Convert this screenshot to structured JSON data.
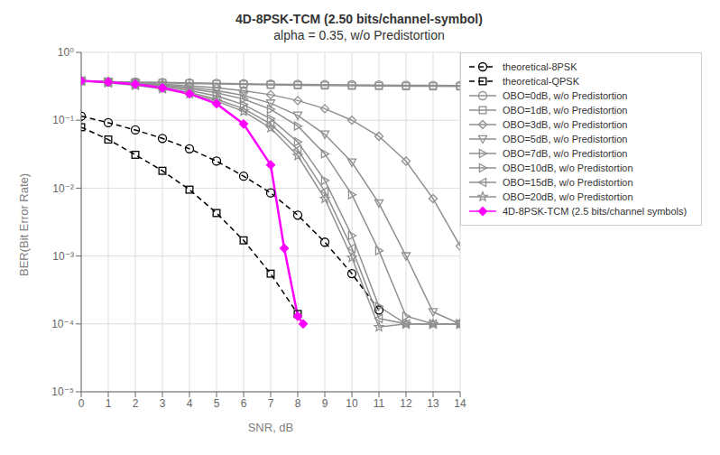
{
  "chart_data": {
    "type": "line",
    "title": "4D-8PSK-TCM (2.50 bits/channel-symbol)",
    "subtitle": "alpha = 0.35, w/o Predistortion",
    "x_label": "SNR, dB",
    "y_label": "BER(Bit Error Rate)",
    "log": "y",
    "grid": true,
    "legend": "upper right",
    "xlim": [
      0,
      14
    ],
    "xticks": [
      0,
      1,
      2,
      3,
      4,
      5,
      6,
      7,
      8,
      9,
      10,
      11,
      12,
      13,
      14
    ],
    "ylim": [
      1e-05,
      1
    ],
    "yticks": [
      {
        "value": 1e-05,
        "label": "10⁻⁵"
      },
      {
        "value": 0.0001,
        "label": "10⁻⁴"
      },
      {
        "value": 0.001,
        "label": "10⁻³"
      },
      {
        "value": 0.01,
        "label": "10⁻²"
      },
      {
        "value": 0.1,
        "label": "10⁻¹"
      },
      {
        "value": 1,
        "label": "10⁰"
      }
    ],
    "series": [
      {
        "name": "theoretical-8PSK",
        "color": "#000000",
        "line_style": "dashed",
        "marker": "circle",
        "x": [
          0,
          1,
          2,
          3,
          4,
          5,
          6,
          7,
          8,
          9,
          10,
          11
        ],
        "values": [
          0.115,
          0.092,
          0.072,
          0.054,
          0.038,
          0.025,
          0.015,
          0.0085,
          0.004,
          0.0016,
          0.00055,
          0.00016
        ]
      },
      {
        "name": "theoretical-QPSK",
        "color": "#000000",
        "line_style": "dashed",
        "marker": "square",
        "x": [
          0,
          1,
          2,
          3,
          4,
          5,
          6,
          7,
          8
        ],
        "values": [
          0.079,
          0.052,
          0.031,
          0.018,
          0.0095,
          0.0043,
          0.0017,
          0.00055,
          0.00014
        ]
      },
      {
        "name": "OBO=0dB, w/o Predistortion",
        "color": "#909090",
        "line_style": "solid",
        "marker": "circle",
        "x": [
          0,
          1,
          2,
          3,
          4,
          5,
          6,
          7,
          8,
          9,
          10,
          11,
          12,
          13,
          14
        ],
        "values": [
          0.38,
          0.37,
          0.365,
          0.36,
          0.355,
          0.35,
          0.345,
          0.34,
          0.338,
          0.335,
          0.332,
          0.33,
          0.328,
          0.326,
          0.325
        ]
      },
      {
        "name": "OBO=1dB, w/o Predistortion",
        "color": "#909090",
        "line_style": "solid",
        "marker": "square",
        "x": [
          0,
          1,
          2,
          3,
          4,
          5,
          6,
          7,
          8,
          9,
          10,
          11,
          12,
          13,
          14
        ],
        "values": [
          0.38,
          0.37,
          0.362,
          0.355,
          0.348,
          0.342,
          0.336,
          0.332,
          0.328,
          0.325,
          0.322,
          0.32,
          0.318,
          0.316,
          0.315
        ]
      },
      {
        "name": "OBO=3dB, w/o Predistortion",
        "color": "#909090",
        "line_style": "solid",
        "marker": "diamond",
        "x": [
          0,
          1,
          2,
          3,
          4,
          5,
          6,
          7,
          8,
          9,
          10,
          11,
          12,
          13,
          14
        ],
        "values": [
          0.38,
          0.368,
          0.355,
          0.34,
          0.322,
          0.3,
          0.272,
          0.238,
          0.195,
          0.148,
          0.1,
          0.058,
          0.025,
          0.007,
          0.0014
        ]
      },
      {
        "name": "OBO=5dB, w/o Predistortion",
        "color": "#909090",
        "line_style": "solid",
        "marker": "triangle-down",
        "x": [
          0,
          1,
          2,
          3,
          4,
          5,
          6,
          7,
          8,
          9,
          10,
          11,
          12,
          13,
          14
        ],
        "values": [
          0.38,
          0.366,
          0.35,
          0.33,
          0.306,
          0.275,
          0.232,
          0.178,
          0.118,
          0.062,
          0.024,
          0.006,
          0.001,
          0.00015,
          0.0001
        ]
      },
      {
        "name": "OBO=7dB, w/o Predistortion",
        "color": "#909090",
        "line_style": "solid",
        "marker": "triangle-right",
        "x": [
          0,
          1,
          2,
          3,
          4,
          5,
          6,
          7,
          8,
          9,
          10,
          11,
          12,
          13,
          14
        ],
        "values": [
          0.38,
          0.365,
          0.346,
          0.322,
          0.292,
          0.254,
          0.205,
          0.145,
          0.082,
          0.032,
          0.008,
          0.0012,
          0.00013,
          0.0001,
          0.0001
        ]
      },
      {
        "name": "OBO=10dB, w/o Predistortion",
        "color": "#909090",
        "line_style": "solid",
        "marker": "triangle-right",
        "x": [
          0,
          1,
          2,
          3,
          4,
          5,
          6,
          7,
          8,
          9,
          10,
          11,
          12,
          13,
          14
        ],
        "values": [
          0.38,
          0.362,
          0.34,
          0.312,
          0.275,
          0.228,
          0.17,
          0.105,
          0.048,
          0.013,
          0.002,
          0.00018,
          0.0001,
          0.0001,
          0.0001
        ]
      },
      {
        "name": "OBO=15dB, w/o Predistortion",
        "color": "#909090",
        "line_style": "solid",
        "marker": "triangle-left",
        "x": [
          0,
          1,
          2,
          3,
          4,
          5,
          6,
          7,
          8,
          9,
          10,
          11,
          12,
          13,
          14
        ],
        "values": [
          0.38,
          0.358,
          0.332,
          0.298,
          0.256,
          0.205,
          0.148,
          0.088,
          0.037,
          0.009,
          0.0013,
          0.00012,
          0.0001,
          0.0001,
          0.0001
        ]
      },
      {
        "name": "OBO=20dB, w/o Predistortion",
        "color": "#909090",
        "line_style": "solid",
        "marker": "star",
        "x": [
          0,
          1,
          2,
          3,
          4,
          5,
          6,
          7,
          8,
          9,
          10,
          11,
          12,
          13,
          14
        ],
        "values": [
          0.38,
          0.356,
          0.326,
          0.29,
          0.245,
          0.192,
          0.135,
          0.077,
          0.03,
          0.007,
          0.00095,
          9e-05,
          0.0001,
          0.0001,
          0.0001
        ]
      },
      {
        "name": "4D-8PSK-TCM (2.5 bits/channel symbols)",
        "color": "#ff00ff",
        "line_style": "solid",
        "marker": "diamond-filled",
        "x": [
          0,
          1,
          2,
          3,
          4,
          5,
          6,
          7,
          7.5,
          8,
          8.2
        ],
        "values": [
          0.38,
          0.365,
          0.34,
          0.3,
          0.245,
          0.175,
          0.088,
          0.022,
          0.0013,
          0.00013,
          0.0001
        ]
      }
    ]
  }
}
